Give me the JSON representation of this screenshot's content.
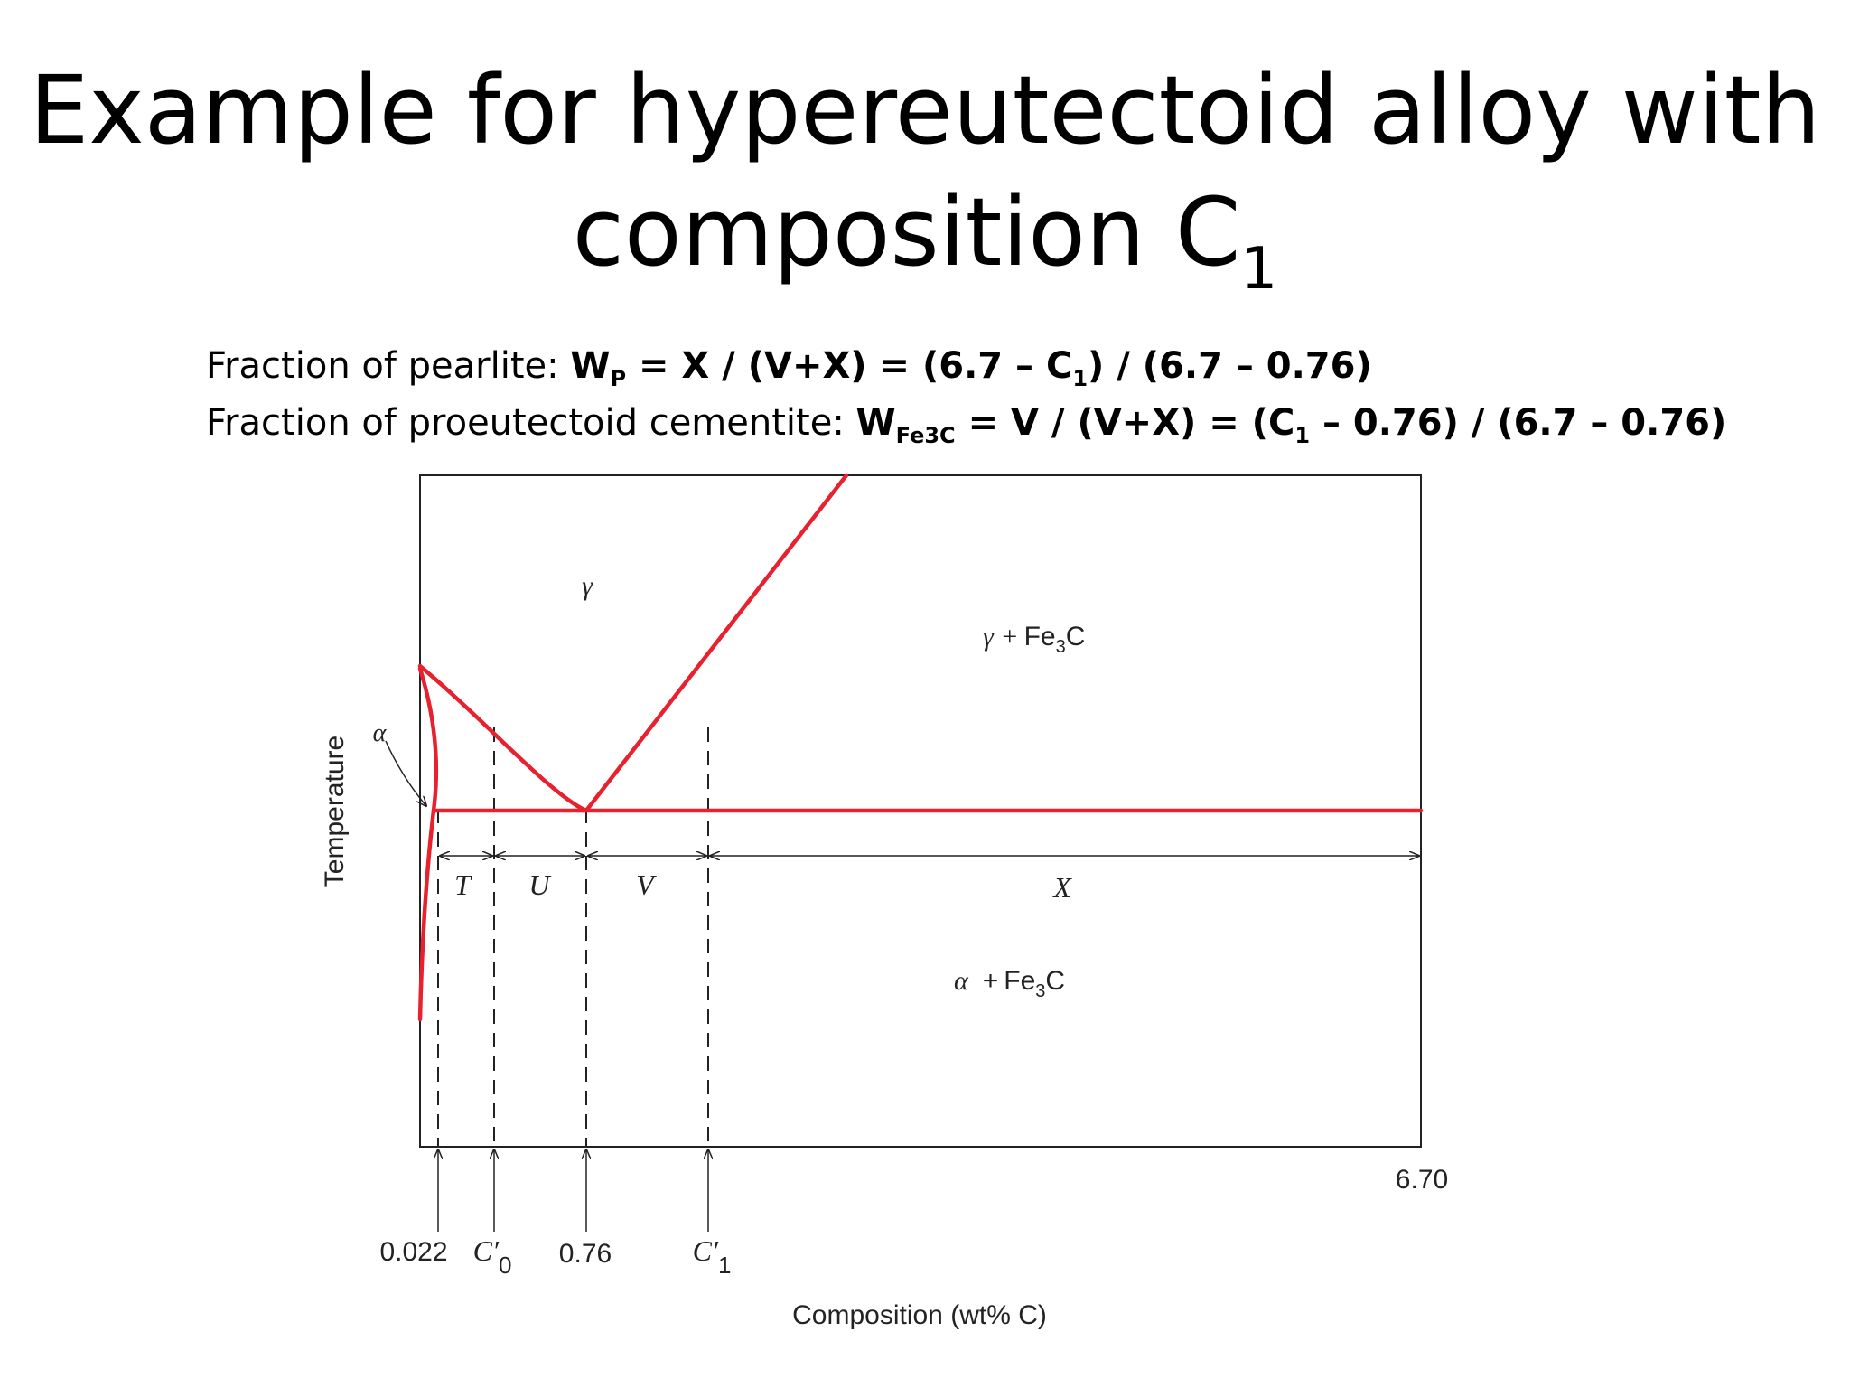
{
  "title": {
    "line1": "Example for hypereutectoid alloy with",
    "line2_main": "composition C",
    "line2_sub": "1"
  },
  "formula1": {
    "label": "Fraction of pearlite: ",
    "w": "W",
    "w_sub": "P",
    "expr_a": " = X / (V+X) = (6.7 – C",
    "c_sub": "1",
    "expr_b": ") / (6.7 – 0.76)"
  },
  "formula2": {
    "label": "Fraction of proeutectoid cementite: ",
    "w": "W",
    "w_sub": "Fe3C",
    "expr_a": " = V / (V+X) = (C",
    "c_sub": "1",
    "expr_b": " – 0.76) / (6.7 – 0.76)"
  },
  "diagram": {
    "y_axis_label": "Temperature",
    "x_axis_label": "Composition (wt% C)",
    "x_max_label": "6.70",
    "phases": {
      "gamma": "γ",
      "alpha": "α",
      "gamma_fe3c_sym": "γ +",
      "alpha_fe3c_sym": "α",
      "fe3c_plus": "+",
      "fe3c_base": "Fe",
      "fe3c_sub": "3",
      "fe3c_tail": "C"
    },
    "segments": {
      "t": "T",
      "u": "U",
      "v": "V",
      "x": "X"
    },
    "markers": {
      "c0022": "0.022",
      "c0_base": "C′",
      "c0_sub": "0",
      "c076": "0.76",
      "c1_base": "C′",
      "c1_sub": "1"
    },
    "line_color": "#e8212f",
    "ink_color": "#222222"
  }
}
